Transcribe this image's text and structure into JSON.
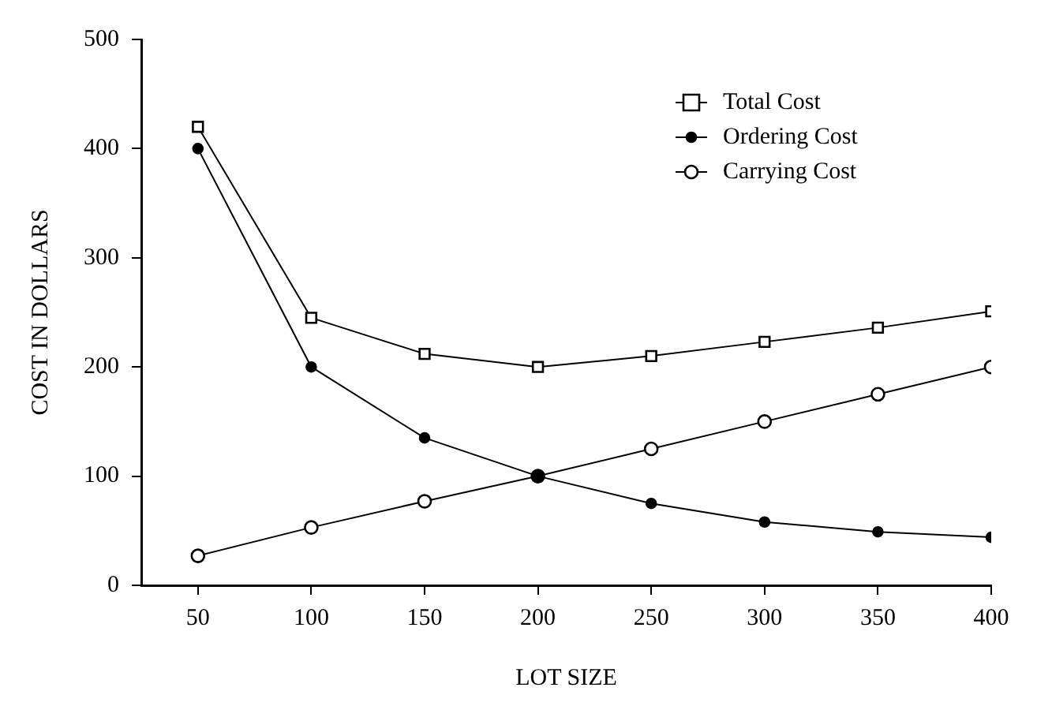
{
  "chart_data": {
    "type": "line",
    "xlabel": "LOT SIZE",
    "ylabel": "COST IN DOLLARS",
    "x": [
      50,
      100,
      150,
      200,
      250,
      300,
      350,
      400
    ],
    "series": [
      {
        "name": "Total Cost",
        "color": "#000000",
        "marker": "square",
        "values": [
          420,
          245,
          212,
          200,
          210,
          223,
          236,
          251
        ]
      },
      {
        "name": "Ordering Cost",
        "color": "#000000",
        "marker": "circle",
        "values": [
          400,
          200,
          135,
          100,
          75,
          58,
          49,
          44
        ]
      },
      {
        "name": "Carrying Cost",
        "color": "#000000",
        "marker": "circle",
        "values": [
          27,
          53,
          77,
          100,
          125,
          150,
          175,
          200
        ]
      }
    ],
    "xlim": [
      25,
      400
    ],
    "xticks": [
      50,
      100,
      150,
      200,
      250,
      300,
      350,
      400
    ],
    "ylim": [
      0,
      500
    ],
    "yticks": [
      0,
      100,
      200,
      300,
      400,
      500
    ],
    "grid": false,
    "legend": "top right",
    "line_style": "solid"
  }
}
